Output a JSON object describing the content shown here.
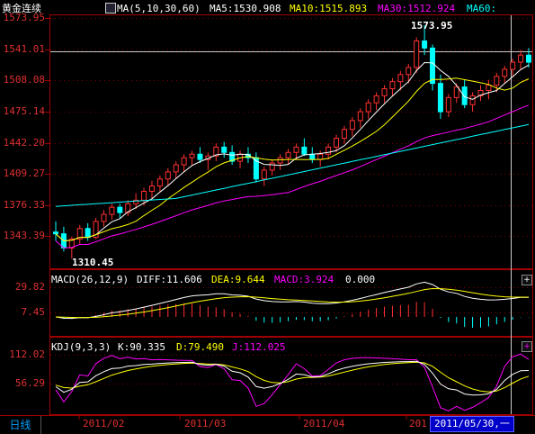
{
  "title": "黄金连续",
  "main_panel": {
    "ma_label": "MA(5,10,30,60)",
    "ma5": "MA5:1530.908",
    "ma10": "MA10:1515.893",
    "ma30": "MA30:1512.924",
    "ma60": "MA60:",
    "high_marker": "1573.95",
    "low_marker": "1310.45",
    "yaxis_ticks": [
      "1573.95",
      "1541.01",
      "1508.08",
      "1475.14",
      "1442.20",
      "1409.27",
      "1376.33",
      "1343.39"
    ],
    "colors": {
      "up": "#ff3030",
      "down": "#00ffff",
      "ma5": "#ffffff",
      "ma10": "#ffff00",
      "ma30": "#ff00ff",
      "ma60": "#00ffff",
      "grid": "#a00000"
    }
  },
  "macd_panel": {
    "label": "MACD(26,12,9)",
    "diff": "DIFF:11.606",
    "dea": "DEA:9.644",
    "macd": "MACD:3.924",
    "zero": "0.000",
    "yaxis_ticks": [
      "29.82",
      "7.45"
    ]
  },
  "kdj_panel": {
    "label": "KDJ(9,3,3)",
    "k": "K:90.335",
    "d": "D:79.490",
    "j": "J:112.025",
    "yaxis_ticks": [
      "112.02",
      "56.29"
    ]
  },
  "bottom_bar": {
    "period_tab": "日线",
    "dates": [
      "2011/02",
      "2011/03",
      "2011/04",
      "201"
    ],
    "current_date": "2011/05/30,一"
  },
  "panel_buttons": {
    "plus": "+",
    "plus2": "+"
  },
  "chart_data": {
    "type": "candlestick",
    "ylim": [
      1300,
      1585
    ],
    "candles": [
      [
        1340,
        1352,
        1330,
        1338
      ],
      [
        1338,
        1346,
        1318,
        1322
      ],
      [
        1322,
        1335,
        1310,
        1332
      ],
      [
        1332,
        1348,
        1326,
        1344
      ],
      [
        1344,
        1350,
        1330,
        1334
      ],
      [
        1334,
        1356,
        1332,
        1352
      ],
      [
        1352,
        1365,
        1346,
        1360
      ],
      [
        1360,
        1372,
        1354,
        1368
      ],
      [
        1368,
        1372,
        1356,
        1362
      ],
      [
        1362,
        1376,
        1358,
        1372
      ],
      [
        1372,
        1384,
        1366,
        1376
      ],
      [
        1376,
        1390,
        1370,
        1386
      ],
      [
        1386,
        1398,
        1378,
        1392
      ],
      [
        1392,
        1404,
        1386,
        1400
      ],
      [
        1400,
        1412,
        1392,
        1408
      ],
      [
        1408,
        1420,
        1400,
        1416
      ],
      [
        1416,
        1428,
        1408,
        1424
      ],
      [
        1424,
        1432,
        1416,
        1428
      ],
      [
        1428,
        1436,
        1418,
        1422
      ],
      [
        1422,
        1430,
        1410,
        1426
      ],
      [
        1426,
        1440,
        1420,
        1436
      ],
      [
        1436,
        1442,
        1424,
        1430
      ],
      [
        1430,
        1438,
        1416,
        1420
      ],
      [
        1420,
        1432,
        1412,
        1428
      ],
      [
        1428,
        1436,
        1418,
        1424
      ],
      [
        1424,
        1430,
        1396,
        1400
      ],
      [
        1400,
        1414,
        1392,
        1410
      ],
      [
        1410,
        1422,
        1404,
        1418
      ],
      [
        1418,
        1428,
        1410,
        1424
      ],
      [
        1424,
        1434,
        1416,
        1430
      ],
      [
        1430,
        1440,
        1422,
        1436
      ],
      [
        1436,
        1446,
        1426,
        1428
      ],
      [
        1428,
        1436,
        1418,
        1422
      ],
      [
        1422,
        1432,
        1414,
        1428
      ],
      [
        1428,
        1440,
        1422,
        1436
      ],
      [
        1436,
        1450,
        1430,
        1446
      ],
      [
        1446,
        1460,
        1440,
        1456
      ],
      [
        1456,
        1470,
        1448,
        1466
      ],
      [
        1466,
        1480,
        1458,
        1476
      ],
      [
        1476,
        1490,
        1468,
        1486
      ],
      [
        1486,
        1498,
        1478,
        1494
      ],
      [
        1494,
        1506,
        1486,
        1502
      ],
      [
        1502,
        1514,
        1494,
        1510
      ],
      [
        1510,
        1522,
        1500,
        1518
      ],
      [
        1518,
        1530,
        1508,
        1526
      ],
      [
        1526,
        1560,
        1520,
        1556
      ],
      [
        1556,
        1574,
        1540,
        1548
      ],
      [
        1548,
        1552,
        1500,
        1508
      ],
      [
        1508,
        1518,
        1468,
        1476
      ],
      [
        1476,
        1496,
        1470,
        1492
      ],
      [
        1492,
        1508,
        1486,
        1504
      ],
      [
        1504,
        1512,
        1480,
        1484
      ],
      [
        1484,
        1498,
        1476,
        1494
      ],
      [
        1494,
        1506,
        1488,
        1500
      ],
      [
        1500,
        1512,
        1490,
        1506
      ],
      [
        1506,
        1520,
        1498,
        1516
      ],
      [
        1516,
        1528,
        1508,
        1524
      ],
      [
        1524,
        1536,
        1516,
        1532
      ],
      [
        1532,
        1546,
        1524,
        1540
      ],
      [
        1540,
        1548,
        1526,
        1532
      ]
    ]
  }
}
